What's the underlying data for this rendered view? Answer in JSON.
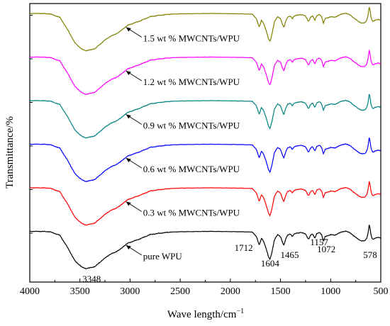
{
  "chart_data": {
    "type": "line",
    "xlabel": "Wave length/cm",
    "xlabel_superscript": "−1",
    "ylabel": "Transmittance/%",
    "xlim": [
      4000,
      500
    ],
    "x_reversed": true,
    "x_ticks": [
      4000,
      3500,
      3000,
      2500,
      2000,
      1500,
      1000,
      500
    ],
    "y_scale": "arbitrary (curves vertically offset, no y tick labels)",
    "grid": false,
    "legend": "none (labels placed next to each curve with arrows)",
    "peak_labels": [
      {
        "x": 3348,
        "label": "3348"
      },
      {
        "x": 1712,
        "label": "1712"
      },
      {
        "x": 1604,
        "label": "1604"
      },
      {
        "x": 1465,
        "label": "1465"
      },
      {
        "x": 1157,
        "label": "1157"
      },
      {
        "x": 1072,
        "label": "1072"
      },
      {
        "x": 578,
        "label": "578"
      }
    ],
    "series": [
      {
        "name": "1.5 wt % MWCNTs/WPU",
        "color": "#808000",
        "baseline": 5.0
      },
      {
        "name": "1.2 wt % MWCNTs/WPU",
        "color": "#ff00ff",
        "baseline": 4.0
      },
      {
        "name": "0.9 wt % MWCNTs/WPU",
        "color": "#008080",
        "baseline": 3.0
      },
      {
        "name": "0.6 wt % MWCNTs/WPU",
        "color": "#0000ff",
        "baseline": 2.0
      },
      {
        "name": "0.3 wt % MWCNTs/WPU",
        "color": "#ff0000",
        "baseline": 1.0
      },
      {
        "name": "pure WPU",
        "color": "#000000",
        "baseline": 0.0
      }
    ]
  }
}
